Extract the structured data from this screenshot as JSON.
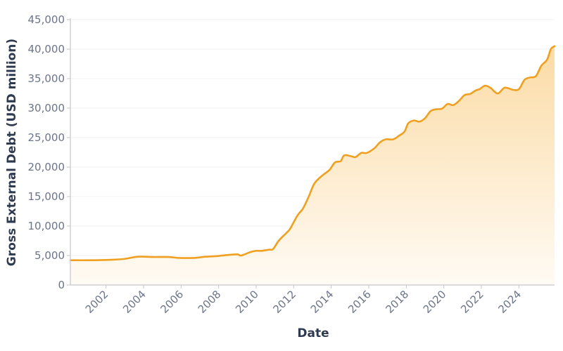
{
  "chart_data": {
    "type": "area",
    "title": "",
    "xlabel": "Date",
    "ylabel": "Gross External Debt (USD million)",
    "xlim": [
      2000.1,
      2025.9
    ],
    "ylim": [
      0,
      45000
    ],
    "grid": true,
    "legend": "none",
    "line_color": "#f0a020",
    "fill_color_top": "#fbd9a0",
    "fill_color_bottom": "#fffaf2",
    "x_ticks": [
      "2002",
      "2004",
      "2006",
      "2008",
      "2010",
      "2012",
      "2014",
      "2016",
      "2018",
      "2020",
      "2022",
      "2024"
    ],
    "y_ticks": [
      "0",
      "5,000",
      "10,000",
      "15,000",
      "20,000",
      "25,000",
      "30,000",
      "35,000",
      "40,000",
      "45,000"
    ],
    "series": [
      {
        "name": "Gross External Debt",
        "x": [
          2000.1,
          2001.0,
          2002.0,
          2002.9,
          2003.7,
          2004.5,
          2005.3,
          2005.9,
          2006.7,
          2007.3,
          2007.9,
          2008.5,
          2009.0,
          2009.2,
          2009.7,
          2010.0,
          2010.3,
          2010.7,
          2010.9,
          2011.2,
          2011.6,
          2011.8,
          2012.2,
          2012.5,
          2012.8,
          2013.1,
          2013.5,
          2013.9,
          2014.2,
          2014.5,
          2014.7,
          2015.1,
          2015.3,
          2015.6,
          2015.9,
          2016.3,
          2016.6,
          2016.9,
          2017.3,
          2017.6,
          2017.9,
          2018.1,
          2018.4,
          2018.7,
          2019.0,
          2019.3,
          2019.6,
          2019.9,
          2020.2,
          2020.5,
          2020.8,
          2021.1,
          2021.4,
          2021.7,
          2021.9,
          2022.2,
          2022.5,
          2022.7,
          2022.9,
          2023.2,
          2023.4,
          2023.7,
          2024.0,
          2024.3,
          2024.6,
          2024.9,
          2025.2,
          2025.5,
          2025.7,
          2025.9
        ],
        "y": [
          4200,
          4200,
          4250,
          4400,
          4800,
          4750,
          4750,
          4600,
          4600,
          4800,
          4900,
          5100,
          5200,
          5000,
          5600,
          5800,
          5800,
          6000,
          6100,
          7500,
          8800,
          9500,
          11800,
          13000,
          15000,
          17200,
          18500,
          19500,
          20800,
          21000,
          22000,
          21800,
          21700,
          22400,
          22400,
          23200,
          24200,
          24700,
          24700,
          25300,
          26000,
          27400,
          27900,
          27700,
          28300,
          29500,
          29800,
          29900,
          30700,
          30500,
          31200,
          32200,
          32400,
          33000,
          33200,
          33800,
          33400,
          32800,
          32500,
          33400,
          33400,
          33100,
          33200,
          34800,
          35200,
          35400,
          37200,
          38200,
          40000,
          40500
        ]
      }
    ]
  }
}
